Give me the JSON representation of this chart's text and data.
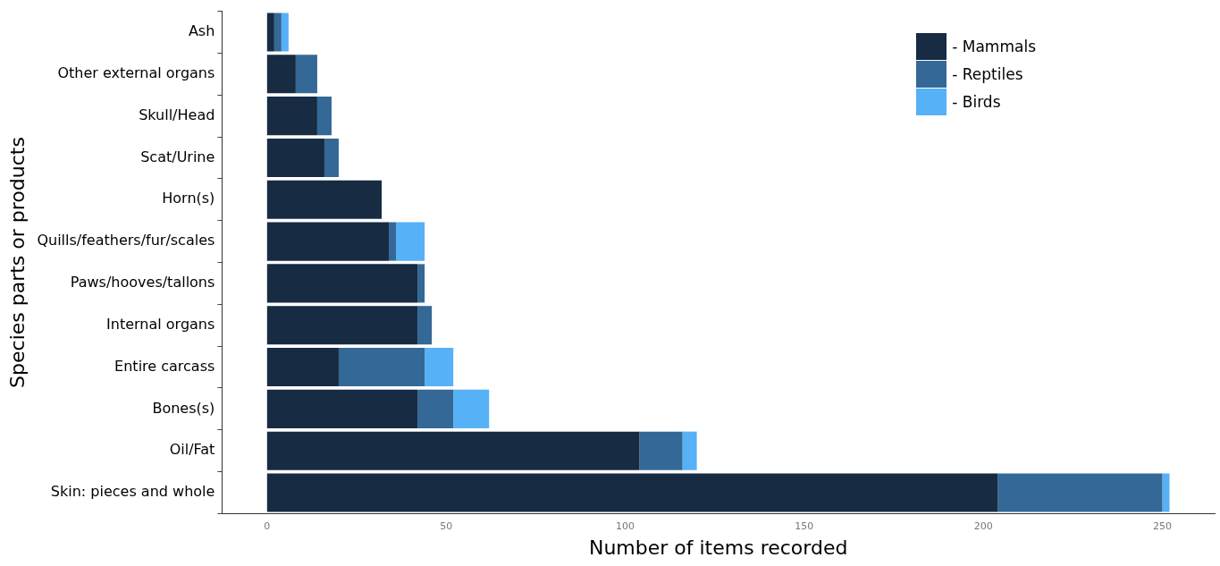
{
  "chart_data": {
    "type": "bar",
    "orientation": "horizontal",
    "stacked": true,
    "xlabel": "Number of items recorded",
    "ylabel": "Species parts or products",
    "categories": [
      "Ash",
      "Other external organs",
      "Skull/Head",
      "Scat/Urine",
      "Horn(s)",
      "Quills/feathers/fur/scales",
      "Paws/hooves/tallons",
      "Internal organs",
      "Entire carcass",
      "Bones(s)",
      "Oil/Fat",
      "Skin: pieces and whole"
    ],
    "series": [
      {
        "name": "- Mammals",
        "color": "#172b43",
        "values": [
          2,
          8,
          14,
          16,
          32,
          34,
          42,
          42,
          20,
          42,
          104,
          204
        ]
      },
      {
        "name": "- Reptiles",
        "color": "#346896",
        "values": [
          2,
          6,
          4,
          4,
          0,
          2,
          2,
          4,
          24,
          10,
          12,
          46
        ]
      },
      {
        "name": "- Birds",
        "color": "#56b1f7",
        "values": [
          2,
          0,
          0,
          0,
          0,
          8,
          0,
          0,
          8,
          10,
          4,
          2
        ]
      }
    ],
    "xlim": [
      -12.6,
      264.6
    ],
    "xticks": [
      0,
      50,
      100,
      150,
      200,
      250
    ],
    "grid": false,
    "legend": "top right"
  }
}
